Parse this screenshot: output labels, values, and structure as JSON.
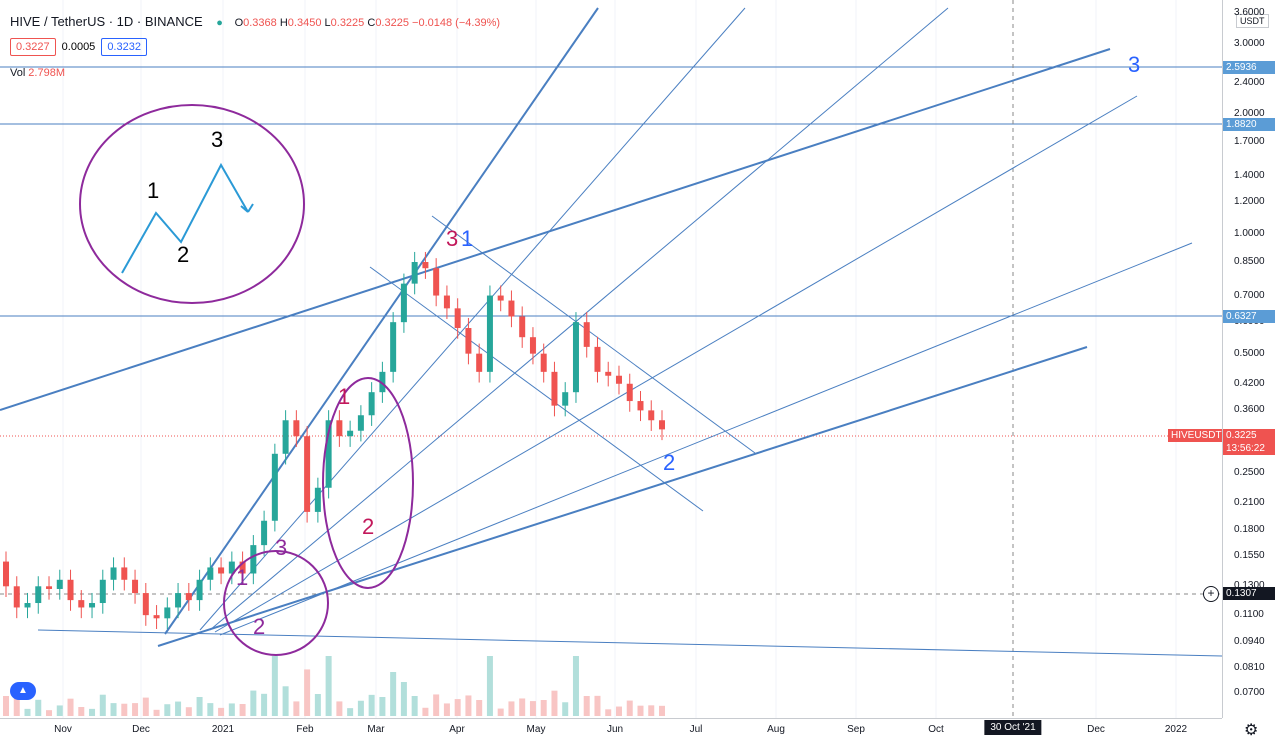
{
  "header": {
    "symbol": "HIVE / TetherUS · 1D · BINANCE",
    "ohlc": {
      "open_label": "O",
      "open": "0.3368",
      "high_label": "H",
      "high": "0.3450",
      "low_label": "L",
      "low": "0.3225",
      "close_label": "C",
      "close": "0.3225",
      "change": "−0.0148 (−4.39%)"
    },
    "bid": "0.3227",
    "spread": "0.0005",
    "ask": "0.3232",
    "vol_label": "Vol",
    "vol_value": "2.798M"
  },
  "axis": {
    "unit": "USDT",
    "y_ticks": [
      "3.6000",
      "3.0000",
      "2.4000",
      "2.0000",
      "1.7000",
      "1.4000",
      "1.2000",
      "1.0000",
      "0.8500",
      "0.7000",
      "0.6000",
      "0.5000",
      "0.4200",
      "0.3600",
      "0.3000",
      "0.2500",
      "0.2100",
      "0.1800",
      "0.1550",
      "0.1300",
      "0.1100",
      "0.0940",
      "0.0810",
      "0.0700"
    ],
    "x_ticks": [
      "Nov",
      "Dec",
      "2021",
      "Feb",
      "Mar",
      "Apr",
      "May",
      "Jun",
      "Jul",
      "Aug",
      "Sep",
      "Oct",
      "Dec",
      "2022"
    ],
    "crosshair_date": "30 Oct '21"
  },
  "price_labels": {
    "level_1": "2.5936",
    "level_2": "1.8820",
    "level_3": "0.6327",
    "symbol": "HIVEUSDT",
    "last": "0.3225",
    "countdown": "13:56:22",
    "crosshair": "0.1307"
  },
  "annotations": {
    "inset_1": "1",
    "inset_2": "2",
    "inset_3": "3",
    "small_1": "1",
    "small_2": "2",
    "small_3": "3",
    "mid_1": "1",
    "mid_2": "2",
    "top_3": "3",
    "top_1": "1",
    "blue_2": "2",
    "blue_3": "3"
  },
  "colors": {
    "up": "#26a69a",
    "down": "#ef5350",
    "trendline": "#4a7fc1",
    "circle": "#8e2a9c",
    "magenta": "#c2185b"
  },
  "chart_data": {
    "type": "candlestick",
    "title": "HIVE / TetherUS · 1D · BINANCE",
    "y_scale": "log",
    "ylim": [
      0.065,
      3.7
    ],
    "x": [
      "Nov",
      "Dec",
      "2021",
      "Feb",
      "Mar",
      "Apr",
      "May",
      "Jun"
    ],
    "series": [
      {
        "name": "",
        "values": [
          [
            0.15,
            0.13
          ],
          [
            0.13,
            0.115
          ],
          [
            0.115,
            0.118
          ],
          [
            0.118,
            0.13
          ],
          [
            0.13,
            0.128
          ],
          [
            0.128,
            0.135
          ],
          [
            0.135,
            0.12
          ],
          [
            0.12,
            0.115
          ],
          [
            0.115,
            0.118
          ],
          [
            0.118,
            0.135
          ],
          [
            0.135,
            0.145
          ],
          [
            0.145,
            0.135
          ],
          [
            0.135,
            0.125
          ],
          [
            0.125,
            0.11
          ],
          [
            0.11,
            0.108
          ],
          [
            0.108,
            0.115
          ],
          [
            0.115,
            0.125
          ],
          [
            0.125,
            0.12
          ],
          [
            0.12,
            0.135
          ],
          [
            0.135,
            0.145
          ],
          [
            0.145,
            0.14
          ],
          [
            0.14,
            0.15
          ],
          [
            0.15,
            0.14
          ],
          [
            0.14,
            0.165
          ],
          [
            0.165,
            0.19
          ],
          [
            0.19,
            0.28
          ],
          [
            0.28,
            0.34
          ],
          [
            0.34,
            0.31
          ],
          [
            0.31,
            0.2
          ],
          [
            0.2,
            0.23
          ],
          [
            0.23,
            0.34
          ],
          [
            0.34,
            0.31
          ],
          [
            0.31,
            0.32
          ],
          [
            0.32,
            0.35
          ],
          [
            0.35,
            0.4
          ],
          [
            0.4,
            0.45
          ],
          [
            0.45,
            0.6
          ],
          [
            0.6,
            0.75
          ],
          [
            0.75,
            0.85
          ],
          [
            0.85,
            0.82
          ],
          [
            0.82,
            0.7
          ],
          [
            0.7,
            0.65
          ],
          [
            0.65,
            0.58
          ],
          [
            0.58,
            0.5
          ],
          [
            0.5,
            0.45
          ],
          [
            0.45,
            0.7
          ],
          [
            0.7,
            0.68
          ],
          [
            0.68,
            0.62
          ],
          [
            0.62,
            0.55
          ],
          [
            0.55,
            0.5
          ],
          [
            0.5,
            0.45
          ],
          [
            0.45,
            0.37
          ],
          [
            0.37,
            0.4
          ],
          [
            0.4,
            0.6
          ],
          [
            0.6,
            0.52
          ],
          [
            0.52,
            0.45
          ],
          [
            0.45,
            0.44
          ],
          [
            0.44,
            0.42
          ],
          [
            0.42,
            0.38
          ],
          [
            0.38,
            0.36
          ],
          [
            0.36,
            0.34
          ],
          [
            0.34,
            0.3225
          ]
        ]
      }
    ],
    "horizontal_levels": [
      2.5936,
      1.882,
      0.6327,
      0.1307
    ],
    "last_price": 0.3225
  }
}
